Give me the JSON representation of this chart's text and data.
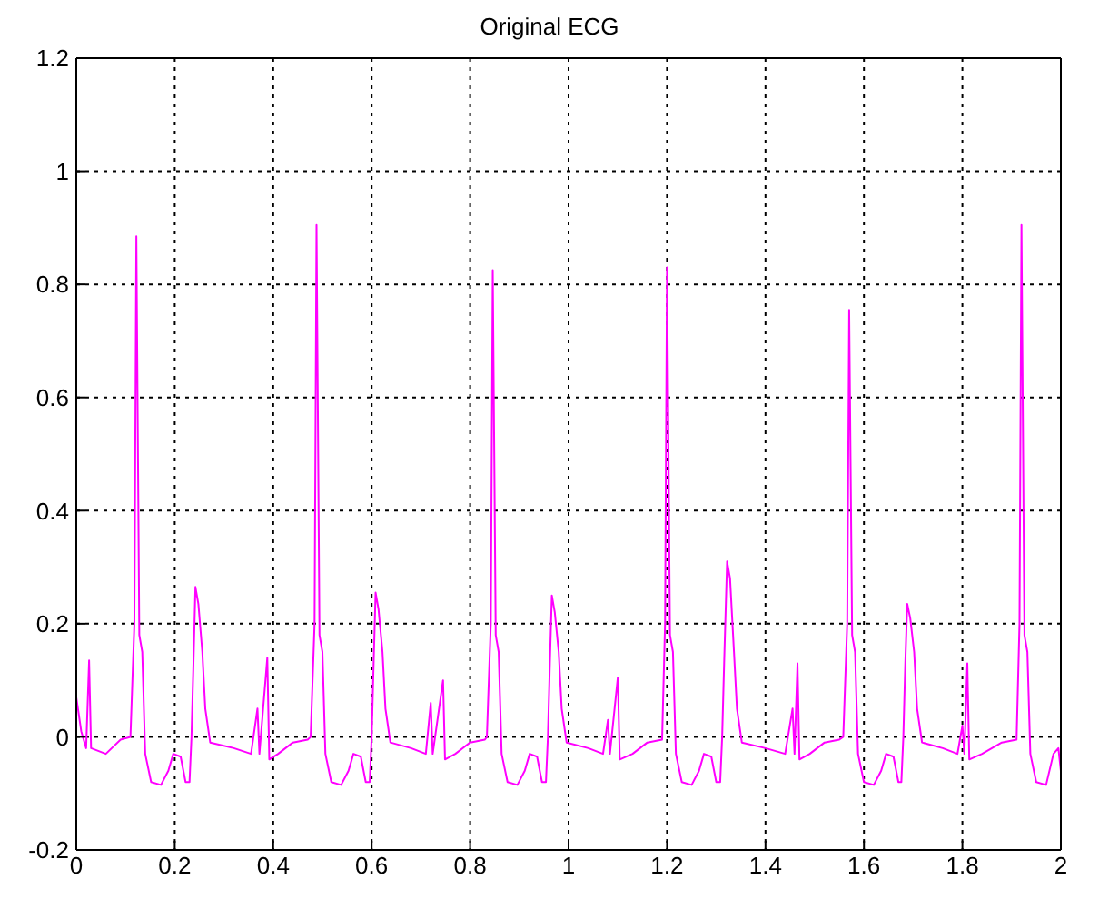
{
  "chart_data": {
    "type": "line",
    "title": "Original ECG",
    "x": [
      0,
      0.01,
      0.02,
      0.026,
      0.03,
      0.06,
      0.09,
      0.11,
      0.118,
      0.122,
      0.128,
      0.134,
      0.14,
      0.152,
      0.172,
      0.187,
      0.197,
      0.212,
      0.222,
      0.23,
      0.234,
      0.238,
      0.242,
      0.248,
      0.256,
      0.262,
      0.272,
      0.32,
      0.355,
      0.368,
      0.372,
      0.388,
      0.392,
      0.41,
      0.44,
      0.47,
      0.476,
      0.484,
      0.488,
      0.494,
      0.5,
      0.506,
      0.518,
      0.538,
      0.553,
      0.563,
      0.578,
      0.588,
      0.596,
      0.6,
      0.604,
      0.608,
      0.614,
      0.622,
      0.628,
      0.638,
      0.68,
      0.71,
      0.72,
      0.724,
      0.745,
      0.749,
      0.77,
      0.8,
      0.83,
      0.834,
      0.842,
      0.846,
      0.852,
      0.858,
      0.864,
      0.876,
      0.896,
      0.911,
      0.921,
      0.936,
      0.946,
      0.954,
      0.958,
      0.962,
      0.966,
      0.972,
      0.98,
      0.986,
      0.996,
      1.04,
      1.07,
      1.08,
      1.084,
      1.1,
      1.104,
      1.13,
      1.16,
      1.19,
      1.196,
      1.2,
      1.206,
      1.212,
      1.218,
      1.23,
      1.25,
      1.265,
      1.275,
      1.29,
      1.3,
      1.308,
      1.312,
      1.316,
      1.322,
      1.328,
      1.336,
      1.342,
      1.352,
      1.4,
      1.44,
      1.455,
      1.459,
      1.465,
      1.469,
      1.49,
      1.52,
      1.55,
      1.558,
      1.566,
      1.57,
      1.576,
      1.582,
      1.588,
      1.6,
      1.62,
      1.635,
      1.645,
      1.66,
      1.67,
      1.676,
      1.68,
      1.684,
      1.688,
      1.694,
      1.702,
      1.708,
      1.718,
      1.76,
      1.79,
      1.8,
      1.804,
      1.81,
      1.814,
      1.84,
      1.88,
      1.91,
      1.916,
      1.92,
      1.926,
      1.932,
      1.938,
      1.95,
      1.97,
      1.985,
      1.995,
      2.0
    ],
    "series": [
      {
        "color": "#ff00ff",
        "values": [
          0.07,
          0.01,
          -0.02,
          0.135,
          -0.02,
          -0.03,
          -0.005,
          0.0,
          0.2,
          0.885,
          0.18,
          0.15,
          -0.03,
          -0.08,
          -0.085,
          -0.06,
          -0.03,
          -0.035,
          -0.08,
          -0.08,
          0.0,
          0.13,
          0.265,
          0.235,
          0.15,
          0.05,
          -0.01,
          -0.02,
          -0.03,
          0.05,
          -0.03,
          0.14,
          -0.04,
          -0.03,
          -0.01,
          -0.005,
          0.0,
          0.2,
          0.905,
          0.18,
          0.15,
          -0.03,
          -0.08,
          -0.085,
          -0.06,
          -0.03,
          -0.035,
          -0.08,
          -0.08,
          0.0,
          0.13,
          0.255,
          0.225,
          0.15,
          0.05,
          -0.01,
          -0.02,
          -0.03,
          0.06,
          -0.03,
          0.1,
          -0.04,
          -0.03,
          -0.01,
          -0.005,
          0.0,
          0.2,
          0.825,
          0.18,
          0.15,
          -0.03,
          -0.08,
          -0.085,
          -0.06,
          -0.03,
          -0.035,
          -0.08,
          -0.08,
          0.0,
          0.13,
          0.25,
          0.22,
          0.15,
          0.05,
          -0.01,
          -0.02,
          -0.03,
          0.03,
          -0.03,
          0.105,
          -0.04,
          -0.03,
          -0.01,
          -0.005,
          0.2,
          0.83,
          0.18,
          0.15,
          -0.03,
          -0.08,
          -0.085,
          -0.06,
          -0.03,
          -0.035,
          -0.08,
          -0.08,
          0.0,
          0.13,
          0.31,
          0.28,
          0.15,
          0.05,
          -0.01,
          -0.02,
          -0.03,
          0.05,
          -0.03,
          0.13,
          -0.04,
          -0.03,
          -0.01,
          -0.005,
          0.0,
          0.2,
          0.755,
          0.18,
          0.15,
          -0.03,
          -0.08,
          -0.085,
          -0.06,
          -0.03,
          -0.035,
          -0.08,
          -0.08,
          0.0,
          0.13,
          0.235,
          0.21,
          0.15,
          0.05,
          -0.01,
          -0.02,
          -0.03,
          0.02,
          -0.03,
          0.13,
          -0.04,
          -0.03,
          -0.01,
          -0.005,
          0.2,
          0.905,
          0.18,
          0.15,
          -0.03,
          -0.08,
          -0.085,
          -0.03,
          -0.02,
          -0.06
        ]
      }
    ],
    "xlim": [
      0,
      2
    ],
    "xticks": [
      0,
      0.2,
      0.4,
      0.6,
      0.8,
      1,
      1.2,
      1.4,
      1.6,
      1.8,
      2
    ],
    "ylim": [
      -0.2,
      1.2
    ],
    "yticks": [
      -0.2,
      0,
      0.2,
      0.4,
      0.6,
      0.8,
      1,
      1.2
    ],
    "grid": true,
    "line_style": "solid",
    "marker": "none",
    "legend": false
  }
}
